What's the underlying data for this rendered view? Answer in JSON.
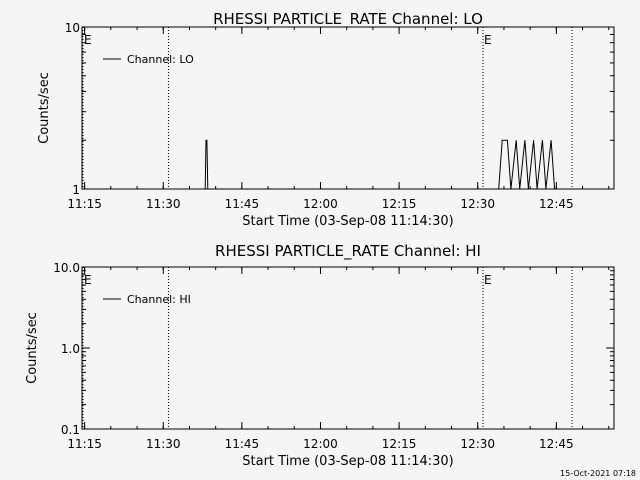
{
  "footer": {
    "timestamp": "15-Oct-2021 07:18"
  },
  "chart_data": [
    {
      "type": "line",
      "title": "RHESSI PARTICLE_RATE Channel: LO",
      "xlabel": "Start Time (03-Sep-08 11:14:30)",
      "ylabel": "Counts/sec",
      "yscale": "log",
      "xlim": [
        "11:14:30",
        "12:56:00"
      ],
      "ylim": [
        1,
        10
      ],
      "x_ticks": [
        "11:15",
        "11:30",
        "11:45",
        "12:00",
        "12:15",
        "12:30",
        "12:45"
      ],
      "y_ticks": [
        "1",
        "10"
      ],
      "legend": {
        "position": "top-left",
        "entries": [
          "Channel: LO"
        ]
      },
      "event_markers": [
        {
          "time": "11:14:30",
          "label": "E"
        },
        {
          "time": "11:31:00",
          "label": ""
        },
        {
          "time": "12:31:00",
          "label": "E"
        },
        {
          "time": "12:48:00",
          "label": ""
        }
      ],
      "series": [
        {
          "name": "Channel: LO",
          "x": [
            "11:38:00",
            "11:38:10",
            "11:38:20",
            "11:38:30",
            "12:34:00",
            "12:34:40",
            "12:35:40",
            "12:36:20",
            "12:37:20",
            "12:38:00",
            "12:39:00",
            "12:39:40",
            "12:40:40",
            "12:41:20",
            "12:42:20",
            "12:43:00",
            "12:44:00",
            "12:44:40"
          ],
          "values": [
            1,
            2,
            2,
            1,
            1,
            2,
            2,
            1,
            2,
            1,
            2,
            1,
            2,
            1,
            2,
            1,
            2,
            1
          ]
        }
      ]
    },
    {
      "type": "line",
      "title": "RHESSI PARTICLE_RATE Channel: HI",
      "xlabel": "Start Time (03-Sep-08 11:14:30)",
      "ylabel": "Counts/sec",
      "yscale": "log",
      "xlim": [
        "11:14:30",
        "12:56:00"
      ],
      "ylim": [
        0.1,
        10
      ],
      "x_ticks": [
        "11:15",
        "11:30",
        "11:45",
        "12:00",
        "12:15",
        "12:30",
        "12:45"
      ],
      "y_ticks": [
        "0.1",
        "1.0",
        "10.0"
      ],
      "legend": {
        "position": "top-left",
        "entries": [
          "Channel: HI"
        ]
      },
      "event_markers": [
        {
          "time": "11:14:30",
          "label": "E"
        },
        {
          "time": "11:31:00",
          "label": ""
        },
        {
          "time": "12:31:00",
          "label": "E"
        },
        {
          "time": "12:48:00",
          "label": ""
        }
      ],
      "series": [
        {
          "name": "Channel: HI",
          "x": [],
          "values": []
        }
      ]
    }
  ]
}
